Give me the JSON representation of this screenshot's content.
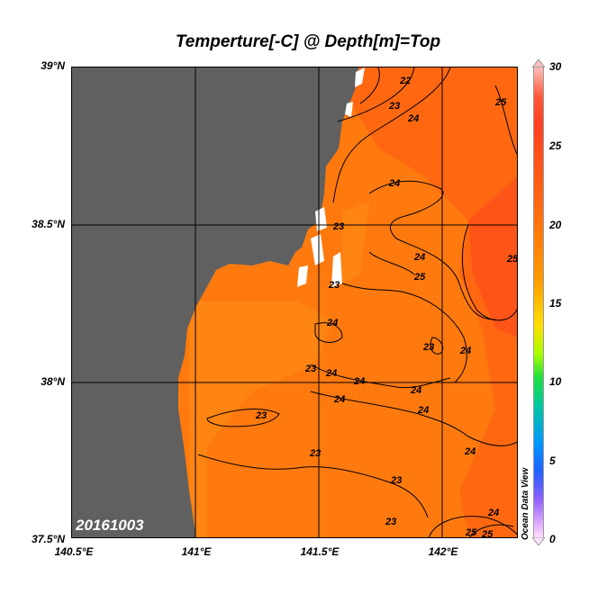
{
  "title": "Temperture[-C] @ Depth[m]=Top",
  "date_stamp": "20161003",
  "watermark": "Ocean Data View",
  "lat_labels": [
    "39°N",
    "38.5°N",
    "38°N",
    "37.5°N"
  ],
  "lon_labels": [
    "140.5°E",
    "141°E",
    "141.5°E",
    "142°E"
  ],
  "colorbar": {
    "labels": [
      "30",
      "25",
      "20",
      "15",
      "10",
      "5",
      "0"
    ],
    "range": [
      0,
      30
    ]
  },
  "contour_labels": [
    "22",
    "23",
    "24",
    "25",
    "23",
    "24",
    "23",
    "24",
    "25",
    "25",
    "24",
    "23",
    "24",
    "24",
    "23",
    "24",
    "24",
    "24",
    "23",
    "24",
    "23",
    "24",
    "23",
    "23",
    "24",
    "25",
    "25"
  ],
  "colors": {
    "land": "#606060",
    "sea_warm": "#ff7a0e",
    "sea_warmer": "#ff5a14",
    "sea_cool": "#ff8c14"
  }
}
